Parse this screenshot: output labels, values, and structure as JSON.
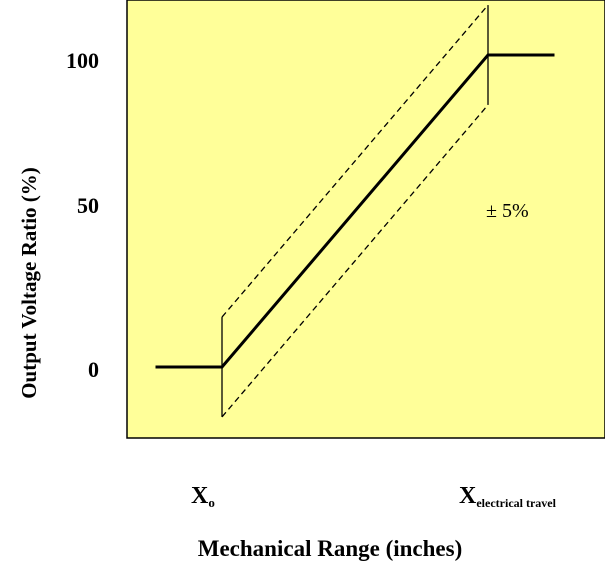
{
  "chart_data": {
    "type": "line",
    "ylabel": "Output Voltage Ratio (%)",
    "xlabel": "Mechanical Range (inches)",
    "y_ticks": [
      "0",
      "50",
      "100"
    ],
    "x_ticks": {
      "start": {
        "main": "X",
        "sub": "o"
      },
      "end": {
        "main": "X",
        "sub": "electrical travel"
      }
    },
    "annotation": "± 5%",
    "colors": {
      "plot_background": "#ffff99",
      "page_background": "#ffffff",
      "line": "#000000"
    },
    "grid": false,
    "series": [
      {
        "values": [
          {
            "x": -1.0,
            "y": 0
          },
          {
            "x": 0.0,
            "y": 0
          },
          {
            "x": 4.0,
            "y": 100
          },
          {
            "x": 5.0,
            "y": 100
          }
        ]
      }
    ],
    "tolerance_band": {
      "percent": 5,
      "upper": [
        {
          "x": 0.0,
          "y": 16
        },
        {
          "x": 4.0,
          "y": 116
        }
      ],
      "lower": [
        {
          "x": 0.0,
          "y": -16
        },
        {
          "x": 4.0,
          "y": 84
        }
      ]
    }
  }
}
